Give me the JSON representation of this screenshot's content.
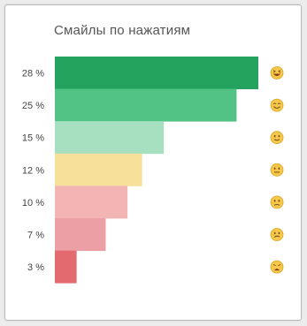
{
  "chart_data": {
    "type": "bar",
    "orientation": "horizontal",
    "title": "Смайлы по нажатиям",
    "categories": [
      "😆",
      "😊",
      "🙂",
      "😐",
      "😕",
      "😒",
      "😩"
    ],
    "values": [
      28,
      25,
      15,
      12,
      10,
      7,
      3
    ],
    "value_labels": [
      "28 %",
      "25 %",
      "15 %",
      "12 %",
      "10 %",
      "7 %",
      "3 %"
    ],
    "bar_colors": [
      "#23a35d",
      "#52c285",
      "#a6e0c0",
      "#f7e19a",
      "#f3b4b4",
      "#eca0a5",
      "#e36b70"
    ],
    "icon_names": [
      "grinning-squint-face-icon",
      "smiling-face-icon",
      "slightly-smiling-face-icon",
      "neutral-face-icon",
      "slightly-frowning-face-icon",
      "unamused-face-icon",
      "weary-face-icon"
    ],
    "grid": false,
    "legend": "none"
  }
}
